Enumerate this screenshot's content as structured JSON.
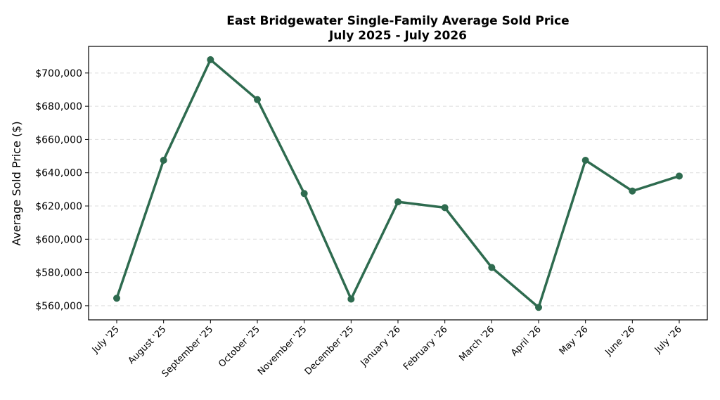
{
  "chart_data": {
    "type": "line",
    "title": "East Bridgewater Single-Family Average Sold Price",
    "subtitle": "July 2025 - July 2026",
    "xlabel": "",
    "ylabel": "Average Sold Price ($)",
    "categories": [
      "July '25",
      "August '25",
      "September '25",
      "October '25",
      "November '25",
      "December '25",
      "January '26",
      "February '26",
      "March '26",
      "April '26",
      "May '26",
      "June '26",
      "July '26"
    ],
    "series": [
      {
        "values": [
          564500,
          647500,
          708000,
          684000,
          627500,
          564000,
          622500,
          619000,
          583000,
          559000,
          647500,
          629000,
          638000
        ]
      }
    ],
    "ylim": [
      551500,
      716000
    ],
    "yticks": [
      560000,
      580000,
      600000,
      620000,
      640000,
      660000,
      680000,
      700000
    ],
    "ytick_labels": [
      "$560,000",
      "$580,000",
      "$600,000",
      "$620,000",
      "$640,000",
      "$660,000",
      "$680,000",
      "$700,000"
    ],
    "grid": "y-dashed",
    "legend": "none",
    "colors": {
      "line": "#2e6b4f",
      "grid": "#dddddd",
      "axis": "#000000"
    }
  }
}
